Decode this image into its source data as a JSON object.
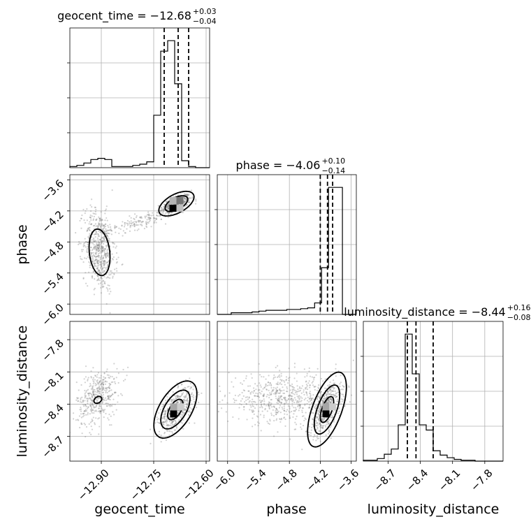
{
  "chart_data": {
    "type": "corner",
    "parameters": [
      "geocent_time",
      "phase",
      "luminosity_distance"
    ],
    "ranges": {
      "geocent_time": [
        -12.99,
        -12.59
      ],
      "phase": [
        -6.2,
        -3.5
      ],
      "luminosity_distance": [
        -8.93,
        -7.63
      ]
    },
    "ticks": {
      "geocent_time": [
        -12.9,
        -12.75,
        -12.6
      ],
      "phase": [
        -6.0,
        -5.4,
        -4.8,
        -4.2,
        -3.6
      ],
      "luminosity_distance": [
        -8.7,
        -8.4,
        -8.1,
        -7.8
      ]
    },
    "tick_labels": {
      "geocent_time": [
        "−12.90",
        "−12.75",
        "−12.60"
      ],
      "phase": [
        "−6.0",
        "−5.4",
        "−4.8",
        "−4.2",
        "−3.6"
      ],
      "luminosity_distance": [
        "−8.7",
        "−8.4",
        "−8.1",
        "−7.8"
      ]
    },
    "titles": [
      {
        "param": "geocent_time",
        "label": "geocent_time = −12.68",
        "plus": "+0.03",
        "minus": "−0.04",
        "median": -12.68,
        "q_low": -12.72,
        "q_high": -12.65
      },
      {
        "param": "phase",
        "label": "phase = −4.06",
        "plus": "+0.10",
        "minus": "−0.14",
        "median": -4.06,
        "q_low": -4.2,
        "q_high": -3.96
      },
      {
        "param": "luminosity_distance",
        "label": "luminosity_distance = −8.44",
        "plus": "+0.16",
        "minus": "−0.08",
        "median": -8.44,
        "q_low": -8.52,
        "q_high": -8.28
      }
    ],
    "histograms": {
      "geocent_time": {
        "edges": [
          -12.99,
          -12.97,
          -12.95,
          -12.93,
          -12.91,
          -12.89,
          -12.87,
          -12.85,
          -12.83,
          -12.81,
          -12.79,
          -12.77,
          -12.75,
          -12.73,
          -12.71,
          -12.69,
          -12.67,
          -12.65,
          -12.63,
          -12.61,
          -12.59
        ],
        "counts": [
          1,
          2,
          4,
          7,
          8,
          7,
          1,
          1,
          1,
          2,
          3,
          5,
          45,
          100,
          109,
          72,
          6,
          1,
          0,
          0
        ]
      },
      "phase": {
        "edges": [
          -6.2,
          -6.065,
          -5.93,
          -5.795,
          -5.66,
          -5.525,
          -5.39,
          -5.255,
          -5.12,
          -4.985,
          -4.85,
          -4.715,
          -4.58,
          -4.445,
          -4.31,
          -4.175,
          -4.04,
          -3.905,
          -3.77,
          -3.635,
          -3.5
        ],
        "counts": [
          0,
          0,
          2,
          2,
          2,
          3,
          4,
          5,
          5,
          5,
          6,
          6,
          7,
          8,
          14,
          57,
          155,
          155,
          0,
          0
        ]
      },
      "luminosity_distance": {
        "edges": [
          -8.93,
          -8.865,
          -8.8,
          -8.735,
          -8.67,
          -8.605,
          -8.54,
          -8.475,
          -8.41,
          -8.345,
          -8.28,
          -8.215,
          -8.15,
          -8.085,
          -8.02,
          -7.955,
          -7.89,
          -7.825,
          -7.76,
          -7.695,
          -7.63
        ],
        "counts": [
          1,
          1,
          3,
          8,
          14,
          42,
          147,
          101,
          42,
          36,
          12,
          7,
          4,
          2,
          1,
          1,
          0,
          0,
          0,
          0
        ]
      }
    },
    "sample_clusters": [
      {
        "x": "geocent_time",
        "y": "phase",
        "cx": -12.685,
        "cy": -4.06,
        "sx": 0.02,
        "sy": 0.09,
        "rho": 0.55,
        "n": 520
      },
      {
        "x": "geocent_time",
        "y": "phase",
        "cx": -12.905,
        "cy": -4.95,
        "sx": 0.022,
        "sy": 0.38,
        "rho": -0.2,
        "n": 600
      },
      {
        "x": "geocent_time",
        "y": "phase",
        "cx": -12.79,
        "cy": -4.4,
        "sx": 0.05,
        "sy": 0.12,
        "rho": 0.8,
        "n": 160
      },
      {
        "x": "geocent_time",
        "y": "luminosity_distance",
        "cx": -12.685,
        "cy": -8.45,
        "sx": 0.025,
        "sy": 0.1,
        "rho": 0.55,
        "n": 520
      },
      {
        "x": "geocent_time",
        "y": "luminosity_distance",
        "cx": -12.91,
        "cy": -8.33,
        "sx": 0.03,
        "sy": 0.13,
        "rho": 0.35,
        "n": 420
      },
      {
        "x": "phase",
        "y": "luminosity_distance",
        "cx": -4.1,
        "cy": -8.45,
        "sx": 0.15,
        "sy": 0.12,
        "rho": 0.55,
        "n": 500
      },
      {
        "x": "phase",
        "y": "luminosity_distance",
        "cx": -4.9,
        "cy": -8.35,
        "sx": 0.55,
        "sy": 0.11,
        "rho": 0.05,
        "n": 650
      }
    ],
    "contours": [
      {
        "x": "geocent_time",
        "y": "phase",
        "cx": -12.685,
        "cy": -4.06,
        "sx": 0.018,
        "sy": 0.085,
        "rho": 0.55,
        "levels": [
          1.8,
          2.8
        ]
      },
      {
        "x": "geocent_time",
        "y": "phase",
        "cx": -12.905,
        "cy": -5.0,
        "sx": 0.02,
        "sy": 0.3,
        "rho": -0.2,
        "levels": []
      },
      {
        "x": "geocent_time",
        "y": "luminosity_distance",
        "cx": -12.688,
        "cy": -8.45,
        "sx": 0.022,
        "sy": 0.095,
        "rho": 0.55,
        "levels": [
          1.0,
          1.9,
          2.8
        ]
      },
      {
        "x": "geocent_time",
        "y": "luminosity_distance",
        "cx": -12.91,
        "cy": -8.36,
        "sx": 0.007,
        "sy": 0.02,
        "rho": 0.3,
        "levels": [
          1.6
        ]
      },
      {
        "x": "phase",
        "y": "luminosity_distance",
        "cx": -4.07,
        "cy": -8.45,
        "sx": 0.13,
        "sy": 0.12,
        "rho": 0.6,
        "levels": [
          1.0,
          1.9,
          2.9
        ]
      }
    ],
    "density_peaks": [
      {
        "x": "geocent_time",
        "y": "phase",
        "cells": [
          [
            -12.695,
            -4.15,
            1.0
          ],
          [
            -12.675,
            -4.0,
            0.55
          ],
          [
            -12.695,
            -4.0,
            0.3
          ],
          [
            -12.675,
            -4.15,
            0.25
          ]
        ]
      },
      {
        "x": "geocent_time",
        "y": "luminosity_distance",
        "cells": [
          [
            -12.693,
            -8.49,
            1.0
          ],
          [
            -12.693,
            -8.425,
            0.35
          ],
          [
            -12.673,
            -8.425,
            0.2
          ]
        ]
      },
      {
        "x": "phase",
        "y": "luminosity_distance",
        "cells": [
          [
            -4.09,
            -8.49,
            1.0
          ],
          [
            -4.09,
            -8.425,
            0.35
          ],
          [
            -3.96,
            -8.425,
            0.2
          ]
        ]
      }
    ]
  }
}
